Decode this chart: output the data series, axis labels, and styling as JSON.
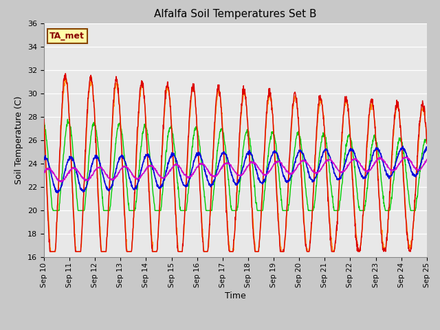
{
  "title": "Alfalfa Soil Temperatures Set B",
  "xlabel": "Time",
  "ylabel": "Soil Temperature (C)",
  "ylim": [
    16,
    36
  ],
  "yticks": [
    16,
    18,
    20,
    22,
    24,
    26,
    28,
    30,
    32,
    34,
    36
  ],
  "fig_facecolor": "#c8c8c8",
  "axes_facecolor": "#e8e8e8",
  "line_colors": {
    "-2cm": "#dd0000",
    "-4cm": "#ff8800",
    "-8cm": "#00cc00",
    "-16cm": "#0000dd",
    "-32cm": "#cc00cc"
  },
  "ta_met_label": "TA_met",
  "ta_met_text_color": "#880000",
  "ta_met_bg": "#ffffaa",
  "ta_met_edge": "#884400",
  "start_day": 10,
  "end_day": 25,
  "n_days": 15,
  "points_per_day": 96
}
